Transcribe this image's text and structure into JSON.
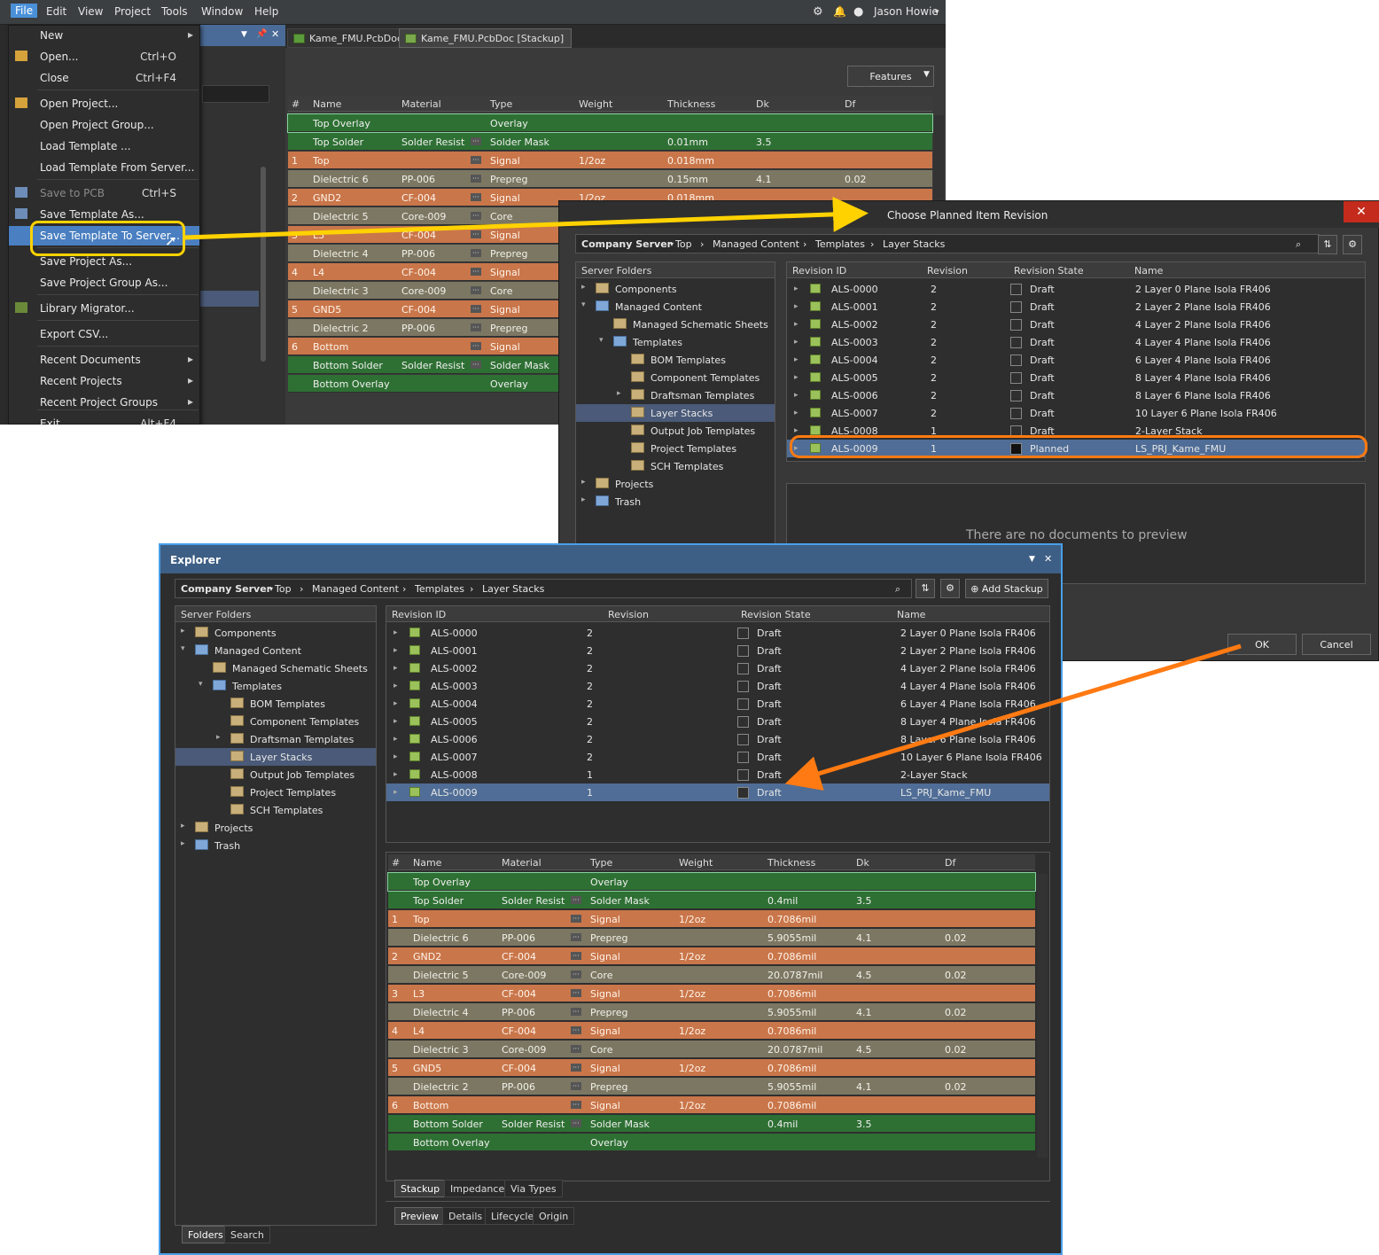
{
  "menubar": {
    "items": [
      "File",
      "Edit",
      "View",
      "Project",
      "Tools",
      "Window",
      "Help"
    ],
    "user": "Jason Howie"
  },
  "doc_tabs": [
    "Kame_FMU.PcbDoc",
    "Kame_FMU.PcbDoc [Stackup]"
  ],
  "features_btn": "Features",
  "file_menu": [
    {
      "label": "New",
      "shortcut": "",
      "arrow": true,
      "icon": "",
      "disabled": false
    },
    {
      "label": "Open...",
      "shortcut": "Ctrl+O",
      "arrow": false,
      "icon": "folder-open-icon",
      "disabled": false
    },
    {
      "label": "Close",
      "shortcut": "Ctrl+F4",
      "arrow": false,
      "icon": "",
      "disabled": false
    },
    {
      "label": "Open Project...",
      "shortcut": "",
      "arrow": false,
      "icon": "open-project-icon",
      "disabled": false
    },
    {
      "label": "Open Project Group...",
      "shortcut": "",
      "arrow": false,
      "icon": "",
      "disabled": false
    },
    {
      "label": "Load Template ...",
      "shortcut": "",
      "arrow": false,
      "icon": "",
      "disabled": false
    },
    {
      "label": "Load Template From Server...",
      "shortcut": "",
      "arrow": false,
      "icon": "",
      "disabled": false
    },
    {
      "label": "Save to PCB",
      "shortcut": "Ctrl+S",
      "arrow": false,
      "icon": "save-icon",
      "disabled": true
    },
    {
      "label": "Save Template As...",
      "shortcut": "",
      "arrow": false,
      "icon": "save-icon",
      "disabled": false
    },
    {
      "label": "Save Template To Server...",
      "shortcut": "",
      "arrow": false,
      "icon": "",
      "disabled": false,
      "highlight": true
    },
    {
      "label": "Save Project As...",
      "shortcut": "",
      "arrow": false,
      "icon": "",
      "disabled": false
    },
    {
      "label": "Save Project Group As...",
      "shortcut": "",
      "arrow": false,
      "icon": "",
      "disabled": false
    },
    {
      "label": "Library Migrator...",
      "shortcut": "",
      "arrow": false,
      "icon": "migrator-icon",
      "disabled": false
    },
    {
      "label": "Export CSV...",
      "shortcut": "",
      "arrow": false,
      "icon": "",
      "disabled": false
    },
    {
      "label": "Recent Documents",
      "shortcut": "",
      "arrow": true,
      "icon": "",
      "disabled": false
    },
    {
      "label": "Recent Projects",
      "shortcut": "",
      "arrow": true,
      "icon": "",
      "disabled": false
    },
    {
      "label": "Recent Project Groups",
      "shortcut": "",
      "arrow": true,
      "icon": "",
      "disabled": false
    },
    {
      "label": "Exit",
      "shortcut": "Alt+F4",
      "arrow": false,
      "icon": "",
      "disabled": false
    }
  ],
  "stack_headers": [
    "#",
    "Name",
    "Material",
    "Type",
    "Weight",
    "Thickness",
    "Dk",
    "Df"
  ],
  "stack_top": [
    {
      "n": "",
      "name": "Top Overlay",
      "mat": "",
      "type": "Overlay",
      "w": "",
      "t": "",
      "dk": "",
      "df": "",
      "c": "g"
    },
    {
      "n": "",
      "name": "Top Solder",
      "mat": "Solder Resist",
      "type": "Solder Mask",
      "w": "",
      "t": "0.01mm",
      "dk": "3.5",
      "df": "",
      "c": "g"
    },
    {
      "n": "1",
      "name": "Top",
      "mat": "",
      "type": "Signal",
      "w": "1/2oz",
      "t": "0.018mm",
      "dk": "",
      "df": "",
      "c": "o"
    },
    {
      "n": "",
      "name": "Dielectric 6",
      "mat": "PP-006",
      "type": "Prepreg",
      "w": "",
      "t": "0.15mm",
      "dk": "4.1",
      "df": "0.02",
      "c": "d"
    },
    {
      "n": "2",
      "name": "GND2",
      "mat": "CF-004",
      "type": "Signal",
      "w": "1/2oz",
      "t": "0.018mm",
      "dk": "",
      "df": "",
      "c": "o"
    },
    {
      "n": "",
      "name": "Dielectric 5",
      "mat": "Core-009",
      "type": "Core",
      "w": "",
      "t": "",
      "dk": "",
      "df": "",
      "c": "d"
    },
    {
      "n": "3",
      "name": "L3",
      "mat": "CF-004",
      "type": "Signal",
      "w": "",
      "t": "",
      "dk": "",
      "df": "",
      "c": "o"
    },
    {
      "n": "",
      "name": "Dielectric 4",
      "mat": "PP-006",
      "type": "Prepreg",
      "w": "",
      "t": "",
      "dk": "",
      "df": "",
      "c": "d"
    },
    {
      "n": "4",
      "name": "L4",
      "mat": "CF-004",
      "type": "Signal",
      "w": "",
      "t": "",
      "dk": "",
      "df": "",
      "c": "o"
    },
    {
      "n": "",
      "name": "Dielectric 3",
      "mat": "Core-009",
      "type": "Core",
      "w": "",
      "t": "",
      "dk": "",
      "df": "",
      "c": "d"
    },
    {
      "n": "5",
      "name": "GND5",
      "mat": "CF-004",
      "type": "Signal",
      "w": "",
      "t": "",
      "dk": "",
      "df": "",
      "c": "o"
    },
    {
      "n": "",
      "name": "Dielectric 2",
      "mat": "PP-006",
      "type": "Prepreg",
      "w": "",
      "t": "",
      "dk": "",
      "df": "",
      "c": "d"
    },
    {
      "n": "6",
      "name": "Bottom",
      "mat": "",
      "type": "Signal",
      "w": "",
      "t": "",
      "dk": "",
      "df": "",
      "c": "o"
    },
    {
      "n": "",
      "name": "Bottom Solder",
      "mat": "Solder Resist",
      "type": "Solder Mask",
      "w": "",
      "t": "",
      "dk": "",
      "df": "",
      "c": "g"
    },
    {
      "n": "",
      "name": "Bottom Overlay",
      "mat": "",
      "type": "Overlay",
      "w": "",
      "t": "",
      "dk": "",
      "df": "",
      "c": "g"
    }
  ],
  "dialog": {
    "title": "Choose Planned Item Revision",
    "ok": "OK",
    "cancel": "Cancel",
    "no_preview": "There are no documents to preview"
  },
  "breadcrumb": {
    "server": "Company Server",
    "path": [
      "Top",
      "Managed Content",
      "Templates",
      "Layer Stacks"
    ]
  },
  "folders_header": "Server Folders",
  "folders": [
    {
      "label": "Components",
      "level": 0,
      "exp": "▸",
      "icon": "components-icon"
    },
    {
      "label": "Managed Content",
      "level": 0,
      "exp": "▾",
      "icon": "folder-icon"
    },
    {
      "label": "Managed Schematic Sheets",
      "level": 1,
      "exp": "",
      "icon": "schematic-folder-icon"
    },
    {
      "label": "Templates",
      "level": 1,
      "exp": "▾",
      "icon": "folder-icon"
    },
    {
      "label": "BOM Templates",
      "level": 2,
      "exp": "",
      "icon": "bom-folder-icon"
    },
    {
      "label": "Component Templates",
      "level": 2,
      "exp": "",
      "icon": "component-folder-icon"
    },
    {
      "label": "Draftsman Templates",
      "level": 2,
      "exp": "▸",
      "icon": "draftsman-folder-icon"
    },
    {
      "label": "Layer Stacks",
      "level": 2,
      "exp": "",
      "icon": "layer-stack-folder-icon",
      "sel": true
    },
    {
      "label": "Output Job Templates",
      "level": 2,
      "exp": "",
      "icon": "outjob-folder-icon"
    },
    {
      "label": "Project Templates",
      "level": 2,
      "exp": "",
      "icon": "project-folder-icon"
    },
    {
      "label": "SCH Templates",
      "level": 2,
      "exp": "",
      "icon": "sch-folder-icon"
    },
    {
      "label": "Projects",
      "level": 0,
      "exp": "▸",
      "icon": "projects-icon"
    },
    {
      "label": "Trash",
      "level": 0,
      "exp": "▸",
      "icon": "trash-folder-icon"
    }
  ],
  "rev_headers": [
    "Revision ID",
    "Revision",
    "Revision State",
    "Name"
  ],
  "revisions": [
    {
      "id": "ALS-0000",
      "rev": "2",
      "state": "Draft",
      "name": "2 Layer 0 Plane Isola FR406"
    },
    {
      "id": "ALS-0001",
      "rev": "2",
      "state": "Draft",
      "name": "2 Layer 2 Plane Isola FR406"
    },
    {
      "id": "ALS-0002",
      "rev": "2",
      "state": "Draft",
      "name": "4 Layer 2 Plane Isola FR406"
    },
    {
      "id": "ALS-0003",
      "rev": "2",
      "state": "Draft",
      "name": "4 Layer 4 Plane Isola FR406"
    },
    {
      "id": "ALS-0004",
      "rev": "2",
      "state": "Draft",
      "name": "6 Layer 4 Plane Isola FR406"
    },
    {
      "id": "ALS-0005",
      "rev": "2",
      "state": "Draft",
      "name": "8 Layer 4 Plane Isola FR406"
    },
    {
      "id": "ALS-0006",
      "rev": "2",
      "state": "Draft",
      "name": "8 Layer 6 Plane Isola FR406"
    },
    {
      "id": "ALS-0007",
      "rev": "2",
      "state": "Draft",
      "name": "10 Layer 6 Plane Isola FR406"
    },
    {
      "id": "ALS-0008",
      "rev": "1",
      "state": "Draft",
      "name": "2-Layer Stack"
    },
    {
      "id": "ALS-0009",
      "rev": "1",
      "state": "Planned",
      "name": "LS_PRJ_Kame_FMU",
      "sel": true
    }
  ],
  "exp_revisions_state_last": "Draft",
  "explorer": {
    "title": "Explorer",
    "add_stackup": "Add Stackup",
    "tabs1": [
      "Stackup",
      "Impedance",
      "Via Types"
    ],
    "tabs2": [
      "Preview",
      "Details",
      "Lifecycle",
      "Origin"
    ],
    "bottom_tabs": [
      "Folders",
      "Search"
    ]
  },
  "stack_exp": [
    {
      "n": "",
      "name": "Top Overlay",
      "mat": "",
      "type": "Overlay",
      "w": "",
      "t": "",
      "dk": "",
      "df": "",
      "c": "g"
    },
    {
      "n": "",
      "name": "Top Solder",
      "mat": "Solder Resist",
      "type": "Solder Mask",
      "w": "",
      "t": "0.4mil",
      "dk": "3.5",
      "df": "",
      "c": "g"
    },
    {
      "n": "1",
      "name": "Top",
      "mat": "",
      "type": "Signal",
      "w": "1/2oz",
      "t": "0.7086mil",
      "dk": "",
      "df": "",
      "c": "o"
    },
    {
      "n": "",
      "name": "Dielectric 6",
      "mat": "PP-006",
      "type": "Prepreg",
      "w": "",
      "t": "5.9055mil",
      "dk": "4.1",
      "df": "0.02",
      "c": "d"
    },
    {
      "n": "2",
      "name": "GND2",
      "mat": "CF-004",
      "type": "Signal",
      "w": "1/2oz",
      "t": "0.7086mil",
      "dk": "",
      "df": "",
      "c": "o"
    },
    {
      "n": "",
      "name": "Dielectric 5",
      "mat": "Core-009",
      "type": "Core",
      "w": "",
      "t": "20.0787mil",
      "dk": "4.5",
      "df": "0.02",
      "c": "d"
    },
    {
      "n": "3",
      "name": "L3",
      "mat": "CF-004",
      "type": "Signal",
      "w": "1/2oz",
      "t": "0.7086mil",
      "dk": "",
      "df": "",
      "c": "o"
    },
    {
      "n": "",
      "name": "Dielectric 4",
      "mat": "PP-006",
      "type": "Prepreg",
      "w": "",
      "t": "5.9055mil",
      "dk": "4.1",
      "df": "0.02",
      "c": "d"
    },
    {
      "n": "4",
      "name": "L4",
      "mat": "CF-004",
      "type": "Signal",
      "w": "1/2oz",
      "t": "0.7086mil",
      "dk": "",
      "df": "",
      "c": "o"
    },
    {
      "n": "",
      "name": "Dielectric 3",
      "mat": "Core-009",
      "type": "Core",
      "w": "",
      "t": "20.0787mil",
      "dk": "4.5",
      "df": "0.02",
      "c": "d"
    },
    {
      "n": "5",
      "name": "GND5",
      "mat": "CF-004",
      "type": "Signal",
      "w": "1/2oz",
      "t": "0.7086mil",
      "dk": "",
      "df": "",
      "c": "o"
    },
    {
      "n": "",
      "name": "Dielectric 2",
      "mat": "PP-006",
      "type": "Prepreg",
      "w": "",
      "t": "5.9055mil",
      "dk": "4.1",
      "df": "0.02",
      "c": "d"
    },
    {
      "n": "6",
      "name": "Bottom",
      "mat": "",
      "type": "Signal",
      "w": "1/2oz",
      "t": "0.7086mil",
      "dk": "",
      "df": "",
      "c": "o"
    },
    {
      "n": "",
      "name": "Bottom Solder",
      "mat": "Solder Resist",
      "type": "Solder Mask",
      "w": "",
      "t": "0.4mil",
      "dk": "3.5",
      "df": "",
      "c": "g"
    },
    {
      "n": "",
      "name": "Bottom Overlay",
      "mat": "",
      "type": "Overlay",
      "w": "",
      "t": "",
      "dk": "",
      "df": "",
      "c": "g"
    }
  ],
  "colors": {
    "signal": "#c9764a",
    "dielectric": "#7c7763",
    "mask": "#2e7033",
    "highlight_yellow": "#ffd200",
    "highlight_orange": "#ff7a12",
    "explorer_border": "#4a9fe8"
  }
}
